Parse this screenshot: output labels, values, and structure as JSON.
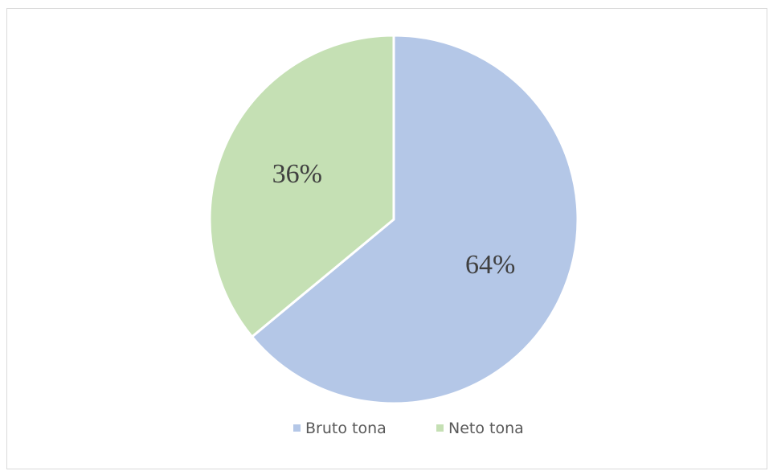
{
  "chart_data": {
    "type": "pie",
    "categories": [
      "Bruto tona",
      "Neto tona"
    ],
    "values": [
      64,
      36
    ],
    "data_labels": [
      "64%",
      "36%"
    ],
    "colors": [
      "#b4c7e7",
      "#c5e0b4"
    ],
    "start_angle_deg": 0,
    "direction": "clockwise",
    "legend": {
      "position": "bottom",
      "entries": [
        "Bruto tona",
        "Neto tona"
      ]
    }
  }
}
